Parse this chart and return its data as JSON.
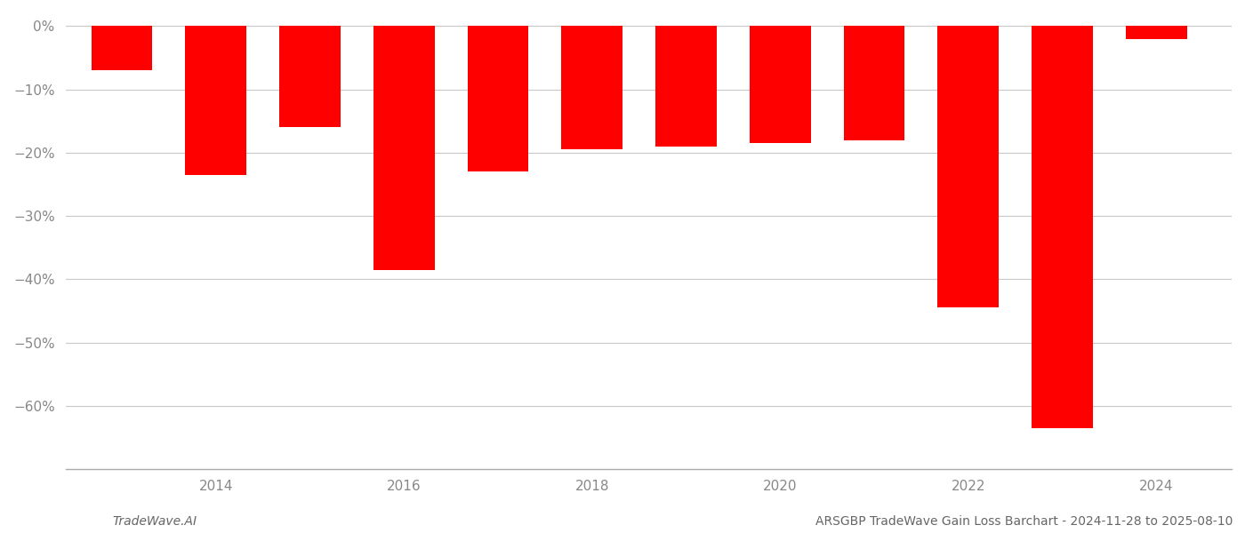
{
  "years": [
    2013,
    2014,
    2015,
    2016,
    2017,
    2018,
    2019,
    2020,
    2021,
    2022,
    2023,
    2024
  ],
  "values": [
    -7.0,
    -23.5,
    -16.0,
    -38.5,
    -23.0,
    -19.5,
    -19.0,
    -18.5,
    -18.0,
    -44.5,
    -63.5,
    -2.0
  ],
  "bar_color": "#ff0000",
  "background_color": "#ffffff",
  "grid_color": "#c8c8c8",
  "tick_color": "#888888",
  "ylim": [
    -70,
    2
  ],
  "yticks": [
    0,
    -10,
    -20,
    -30,
    -40,
    -50,
    -60
  ],
  "footer_left": "TradeWave.AI",
  "footer_right": "ARSGBP TradeWave Gain Loss Barchart - 2024-11-28 to 2025-08-10",
  "bar_width": 0.65,
  "xlim_left": 2012.4,
  "xlim_right": 2024.8
}
